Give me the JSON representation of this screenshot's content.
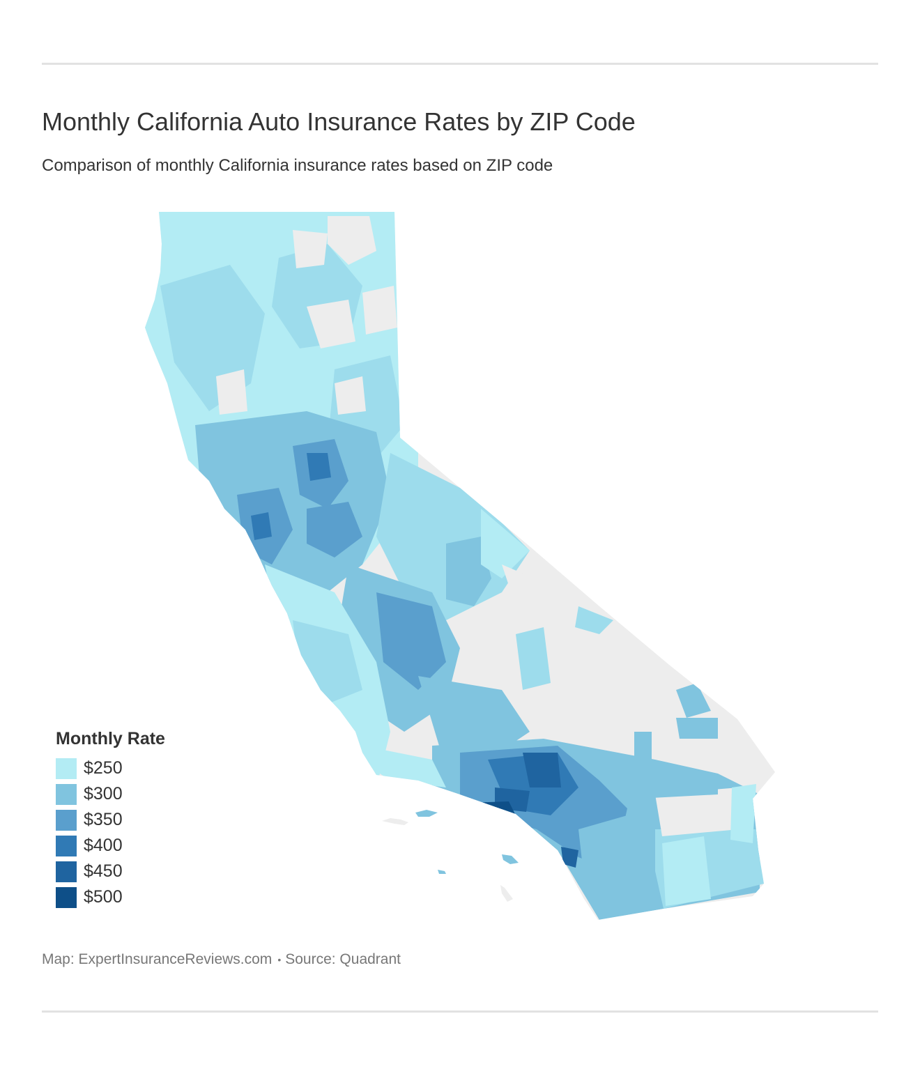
{
  "header": {
    "title": "Monthly California Auto Insurance Rates by ZIP Code",
    "subtitle": "Comparison of monthly California insurance rates based on ZIP code"
  },
  "legend": {
    "title": "Monthly Rate",
    "items": [
      {
        "label": "$250",
        "color": "#b3ecf4"
      },
      {
        "label": "$300",
        "color": "#80c4df"
      },
      {
        "label": "$350",
        "color": "#5a9fcd"
      },
      {
        "label": "$400",
        "color": "#307ab5"
      },
      {
        "label": "$450",
        "color": "#1f64a0"
      },
      {
        "label": "$500",
        "color": "#0e4f88"
      }
    ]
  },
  "map": {
    "region": "California",
    "no_data_color": "#ededed"
  },
  "footer": {
    "map_credit": "Map: ExpertInsuranceReviews.com",
    "separator": "•",
    "source": "Source: Quadrant"
  }
}
